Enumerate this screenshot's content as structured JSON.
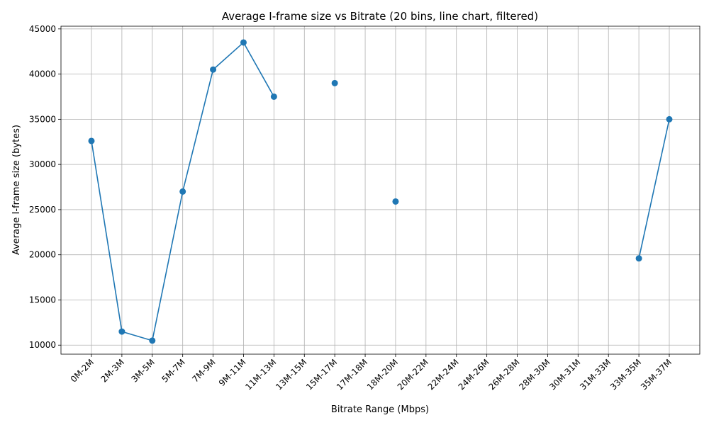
{
  "chart_data": {
    "type": "line",
    "title": "Average I-frame size vs Bitrate (20 bins, line chart, filtered)",
    "xlabel": "Bitrate Range (Mbps)",
    "ylabel": "Average I-frame size (bytes)",
    "categories": [
      "0M-2M",
      "2M-3M",
      "3M-5M",
      "5M-7M",
      "7M-9M",
      "9M-11M",
      "11M-13M",
      "13M-15M",
      "15M-17M",
      "17M-18M",
      "18M-20M",
      "20M-22M",
      "22M-24M",
      "24M-26M",
      "26M-28M",
      "28M-30M",
      "30M-31M",
      "31M-33M",
      "33M-35M",
      "35M-37M"
    ],
    "series": [
      {
        "color": "#1f77b4",
        "values": [
          32600,
          11500,
          10500,
          27000,
          40500,
          43500,
          37500,
          null,
          39000,
          null,
          25900,
          null,
          null,
          null,
          null,
          null,
          null,
          null,
          19600,
          35000
        ]
      }
    ],
    "ylim": [
      9000,
      45300
    ],
    "yticks": [
      10000,
      15000,
      20000,
      25000,
      30000,
      35000,
      40000,
      45000
    ],
    "grid": true,
    "legend": "none"
  }
}
